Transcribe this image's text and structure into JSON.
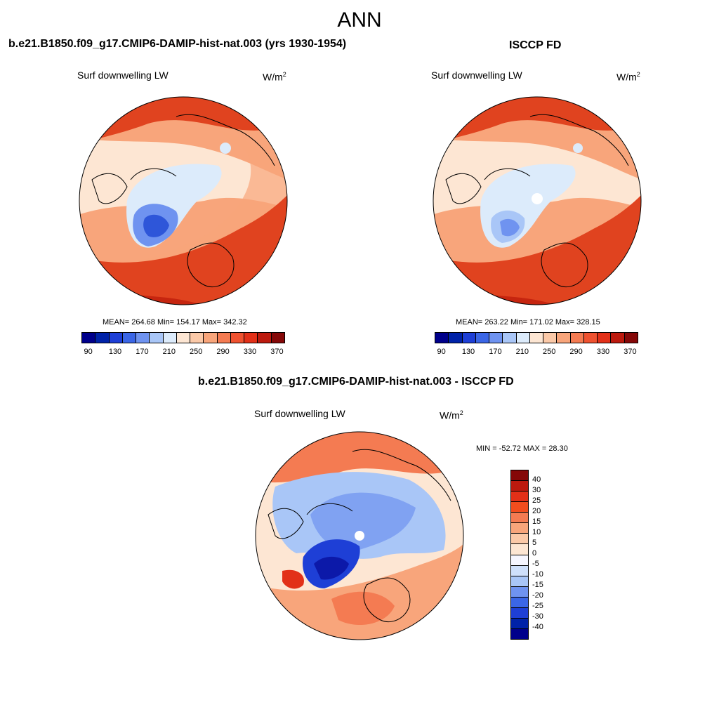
{
  "title": "ANN",
  "panels": [
    {
      "title": "b.e21.B1850.f09_g17.CMIP6-DAMIP-hist-nat.003 (yrs 1930-1954)",
      "variable": "Surf downwelling LW",
      "units_base": "W/m",
      "units_exp": "2",
      "stats": "MEAN= 264.68  Min= 154.17  Max= 342.32"
    },
    {
      "title": "ISCCP FD",
      "variable": "Surf downwelling LW",
      "units_base": "W/m",
      "units_exp": "2",
      "stats": "MEAN= 263.22  Min= 171.02  Max= 328.15"
    },
    {
      "title": "b.e21.B1850.f09_g17.CMIP6-DAMIP-hist-nat.003 - ISCCP FD",
      "variable": "Surf downwelling LW",
      "units_base": "W/m",
      "units_exp": "2",
      "stats": "MIN = -52.72 MAX =  28.30"
    }
  ],
  "colorbar_horizontal": {
    "colors": [
      "#00008b",
      "#0022a8",
      "#1e3fd6",
      "#3b66e6",
      "#6f93f0",
      "#a9c6f7",
      "#dcebfb",
      "#fde6d3",
      "#fbc9a8",
      "#f8a57b",
      "#f47b52",
      "#ef5230",
      "#e23018",
      "#bc1a0e",
      "#850808"
    ],
    "tick_labels": [
      "90",
      "130",
      "170",
      "210",
      "250",
      "290",
      "330",
      "370"
    ]
  },
  "colorbar_vertical": {
    "colors": [
      "#850808",
      "#bc1a0e",
      "#e23018",
      "#f24d1e",
      "#f47b52",
      "#f8a57b",
      "#fbc9a8",
      "#fde6d3",
      "#f6f6ff",
      "#cfe0fb",
      "#a9c6f7",
      "#6f93f0",
      "#3b66e6",
      "#1e3fd6",
      "#0022a8",
      "#00008b"
    ],
    "tick_labels": [
      "40",
      "30",
      "25",
      "20",
      "15",
      "10",
      "5",
      "0",
      "-5",
      "-10",
      "-15",
      "-20",
      "-25",
      "-30",
      "-40"
    ]
  },
  "map_colors": {
    "warm_dark": "#e0431f",
    "warm_mid": "#f47b52",
    "warm_light": "#f8a57b",
    "warm_pale": "#fde6d3",
    "cool_pale": "#dcebfb",
    "cool_mid": "#6f93f0",
    "cool_dark": "#2e56d9"
  }
}
